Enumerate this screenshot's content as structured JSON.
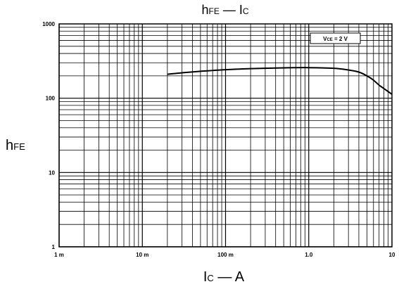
{
  "chart_data": {
    "type": "line",
    "title": {
      "main_a": "h",
      "sub_a": "FE",
      "dash": " — ",
      "main_b": "I",
      "sub_b": "C"
    },
    "xlabel": {
      "main": "I",
      "sub": "C",
      "suffix": " — A"
    },
    "ylabel": {
      "main": "h",
      "sub": "FE"
    },
    "xscale": "log",
    "yscale": "log",
    "xlim": [
      0.001,
      10
    ],
    "ylim": [
      1,
      1000
    ],
    "grid": true,
    "x_tick_labels": [
      {
        "value": 0.001,
        "label": "1 m"
      },
      {
        "value": 0.01,
        "label": "10 m"
      },
      {
        "value": 0.1,
        "label": "100 m"
      },
      {
        "value": 1,
        "label": "1.0"
      },
      {
        "value": 10,
        "label": "10"
      }
    ],
    "y_tick_labels": [
      {
        "value": 1,
        "label": "1"
      },
      {
        "value": 10,
        "label": "10"
      },
      {
        "value": 100,
        "label": "100"
      },
      {
        "value": 1000,
        "label": "1000"
      }
    ],
    "legend": {
      "main": "V",
      "sub": "CE",
      "suffix": " = 2 V",
      "placement": "top-right"
    },
    "series": [
      {
        "x": [
          0.02,
          0.03,
          0.05,
          0.1,
          0.2,
          0.5,
          1.0,
          2.0,
          3.0,
          4.0,
          5.0,
          6.0,
          7.0,
          8.0,
          10.0
        ],
        "y": [
          210,
          220,
          230,
          242,
          250,
          256,
          258,
          253,
          240,
          225,
          200,
          175,
          150,
          135,
          113
        ]
      }
    ],
    "color": "#000000"
  }
}
